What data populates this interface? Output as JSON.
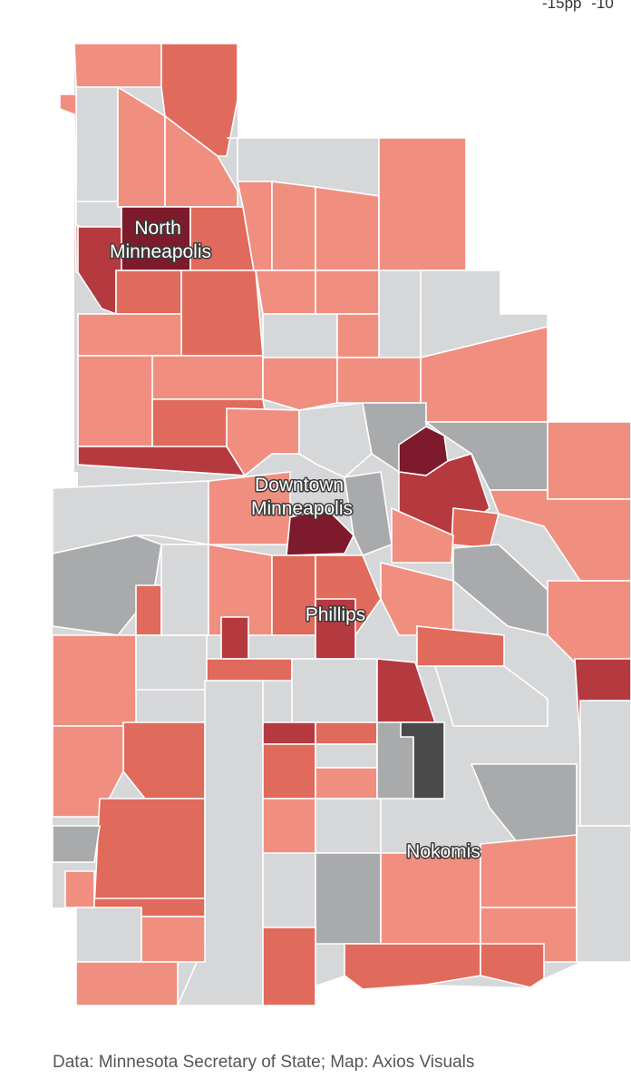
{
  "legend": {
    "ticks": [
      "-15pp",
      "-10"
    ]
  },
  "colors": {
    "gray_light": "#d6d7d9",
    "gray_mid": "#a9aaac",
    "gray_dark": "#4a4a4a",
    "pink": "#f08f80",
    "salmon": "#e06a5c",
    "red": "#b53a40",
    "dark_red": "#7d1a2c",
    "border": "#ffffff"
  },
  "labels": {
    "north": [
      "North",
      "Minneapolis"
    ],
    "downtown": [
      "Downtown",
      "Minneapolis"
    ],
    "phillips": [
      "Phillips"
    ],
    "nokomis": [
      "Nokomis"
    ]
  },
  "source": "Data: Minnesota Secretary of State; Map: Axios Visuals"
}
